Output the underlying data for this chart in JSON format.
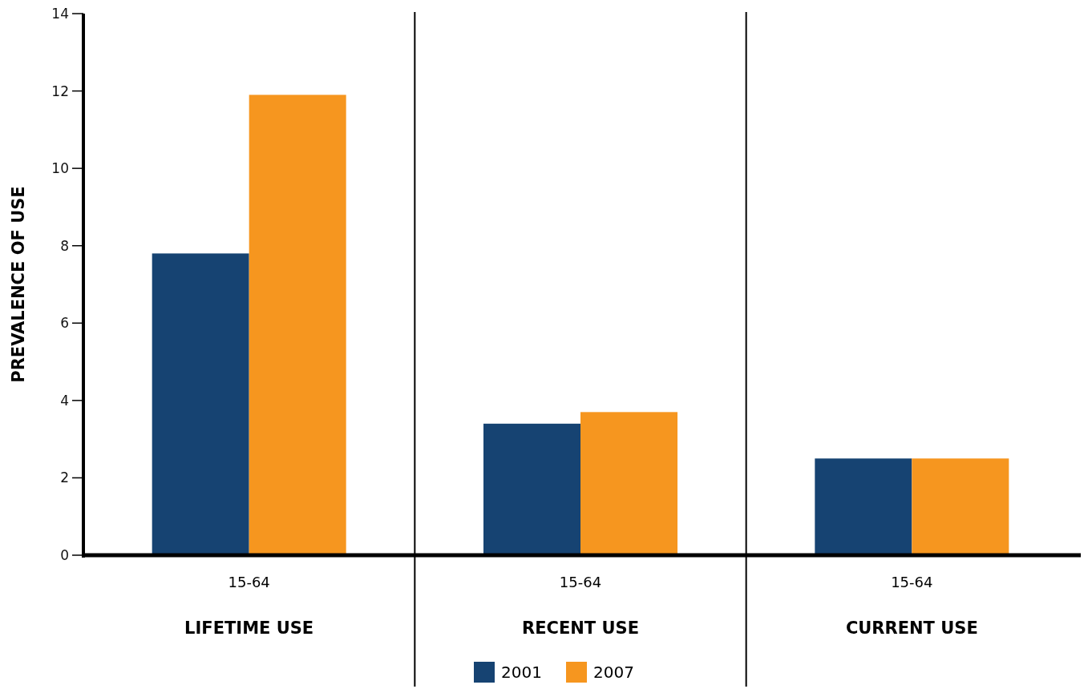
{
  "chart_data": {
    "type": "bar",
    "ylabel": "PREVALENCE OF USE",
    "categories": [
      "LIFETIME USE",
      "RECENT USE",
      "CURRENT USE"
    ],
    "series": [
      {
        "name": "2001",
        "color": "#164372",
        "values": [
          7.8,
          3.4,
          2.5
        ]
      },
      {
        "name": "2007",
        "color": "#f6961f",
        "values": [
          11.9,
          3.7,
          2.5
        ]
      }
    ],
    "ylim": [
      0,
      14
    ],
    "yticks": [
      0,
      2,
      4,
      6,
      8,
      10,
      12,
      14
    ],
    "grid": false,
    "legend": "bottom",
    "annotations": [
      "15-64",
      "15-64",
      "15-64"
    ]
  }
}
